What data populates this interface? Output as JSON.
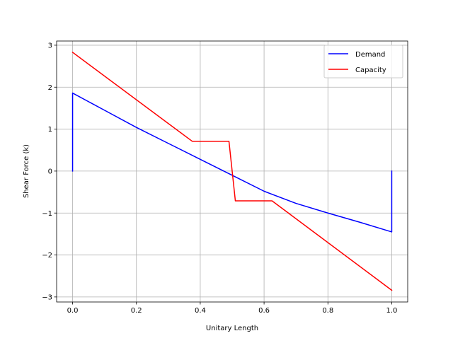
{
  "chart_data": {
    "type": "line",
    "title": "",
    "xlabel": "Unitary Length",
    "ylabel": "Shear Force (k)",
    "xlim": [
      -0.05,
      1.05
    ],
    "ylim": [
      -3.12,
      3.1
    ],
    "xticks": [
      0.0,
      0.2,
      0.4,
      0.6,
      0.8,
      1.0
    ],
    "xtick_labels": [
      "0.0",
      "0.2",
      "0.4",
      "0.6",
      "0.8",
      "1.0"
    ],
    "yticks": [
      -3,
      -2,
      -1,
      0,
      1,
      2,
      3
    ],
    "ytick_labels": [
      "−3",
      "−2",
      "−1",
      "0",
      "1",
      "2",
      "3"
    ],
    "grid": true,
    "legend_position": "top-right",
    "series": [
      {
        "name": "Demand",
        "color": "#0000ff",
        "x": [
          0.0,
          0.0,
          0.1,
          0.2,
          0.3,
          0.4,
          0.5,
          0.6,
          0.7,
          0.8,
          0.9,
          1.0,
          1.0
        ],
        "y": [
          0.0,
          1.86,
          1.45,
          1.04,
          0.66,
          0.28,
          -0.1,
          -0.48,
          -0.77,
          -1.0,
          -1.22,
          -1.45,
          0.0
        ]
      },
      {
        "name": "Capacity",
        "color": "#ff0000",
        "x": [
          0.0,
          0.375,
          0.49,
          0.51,
          0.625,
          1.0
        ],
        "y": [
          2.83,
          0.71,
          0.71,
          -0.71,
          -0.71,
          -2.84
        ]
      }
    ]
  }
}
